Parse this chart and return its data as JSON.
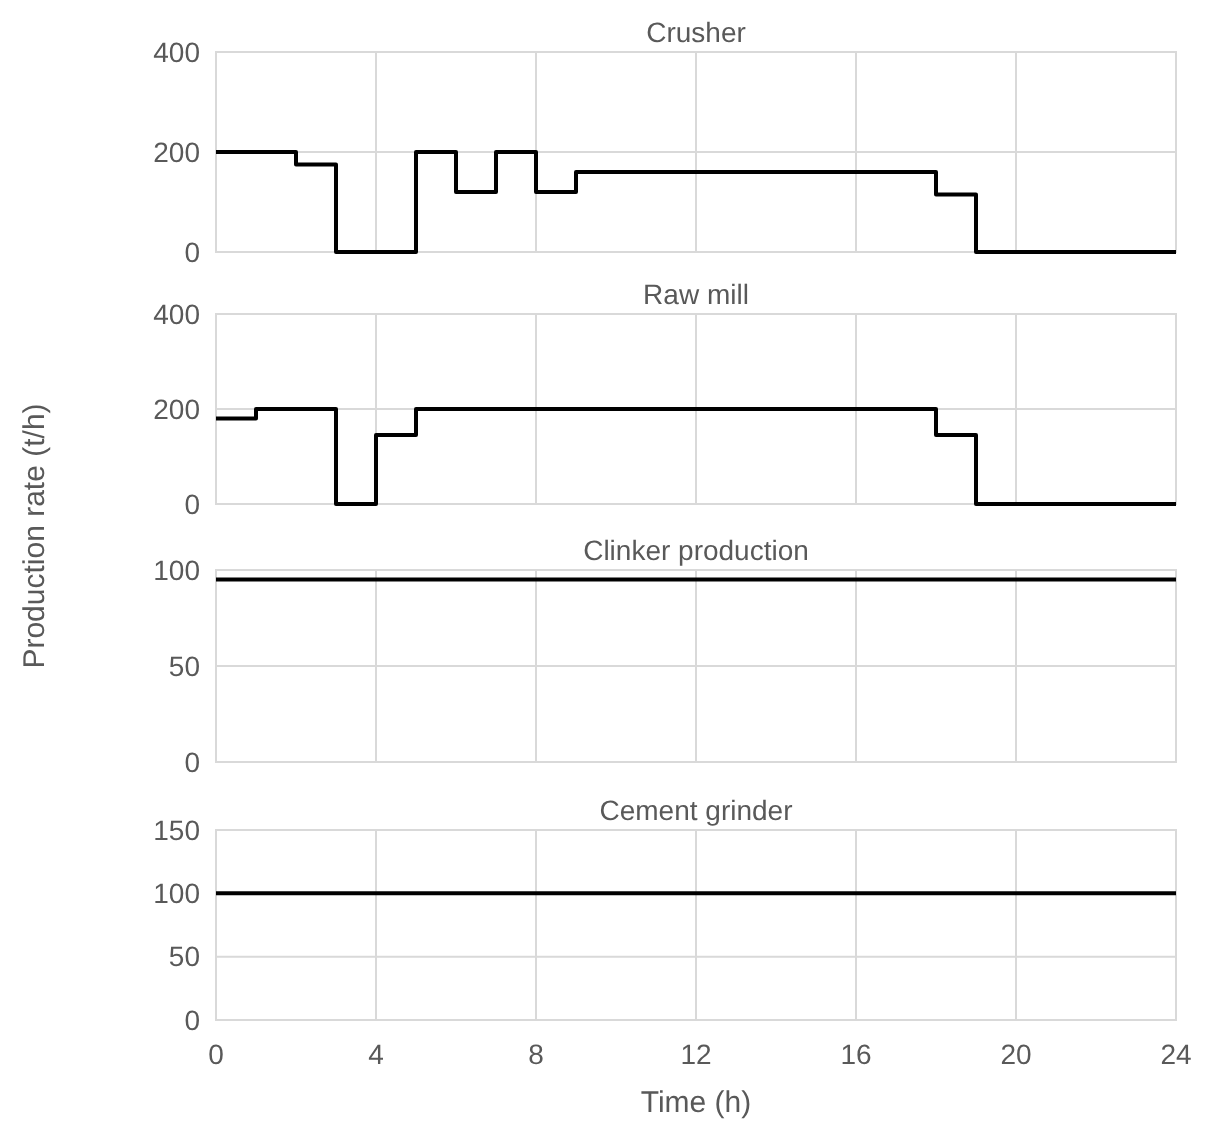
{
  "chart_data": [
    {
      "type": "step",
      "title": "Crusher",
      "x": [
        0,
        2,
        3,
        5,
        6,
        7,
        8,
        9,
        18,
        19,
        24
      ],
      "values": [
        200,
        175,
        0,
        200,
        120,
        200,
        120,
        160,
        115,
        0,
        0
      ],
      "color": "#000000",
      "xlim": [
        0,
        24
      ],
      "xticks": [
        0,
        4,
        8,
        12,
        16,
        20,
        24
      ],
      "ylim": [
        0,
        400
      ],
      "yticks": [
        0,
        200,
        400
      ],
      "grid": true,
      "tick_labels": "y"
    },
    {
      "type": "step",
      "title": "Raw mill",
      "x": [
        0,
        1,
        3,
        4,
        5,
        18,
        19,
        24
      ],
      "values": [
        180,
        200,
        0,
        145,
        200,
        145,
        0,
        0
      ],
      "color": "#000000",
      "xlim": [
        0,
        24
      ],
      "xticks": [
        0,
        4,
        8,
        12,
        16,
        20,
        24
      ],
      "ylim": [
        0,
        400
      ],
      "yticks": [
        0,
        200,
        400
      ],
      "grid": true,
      "tick_labels": "y"
    },
    {
      "type": "step",
      "title": "Clinker production",
      "ylabel": "Production rate (t/h)",
      "x": [
        0,
        24
      ],
      "values": [
        95,
        95
      ],
      "color": "#000000",
      "xlim": [
        0,
        24
      ],
      "xticks": [
        0,
        4,
        8,
        12,
        16,
        20,
        24
      ],
      "ylim": [
        0,
        100
      ],
      "yticks": [
        0,
        50,
        100
      ],
      "grid": true,
      "tick_labels": "y"
    },
    {
      "type": "step",
      "title": "Cement grinder",
      "xlabel": "Time (h)",
      "x": [
        0,
        24
      ],
      "values": [
        100,
        100
      ],
      "color": "#000000",
      "xlim": [
        0,
        24
      ],
      "xticks": [
        0,
        4,
        8,
        12,
        16,
        20,
        24
      ],
      "ylim": [
        0,
        150
      ],
      "yticks": [
        0,
        50,
        100,
        150
      ],
      "grid": true
    }
  ]
}
